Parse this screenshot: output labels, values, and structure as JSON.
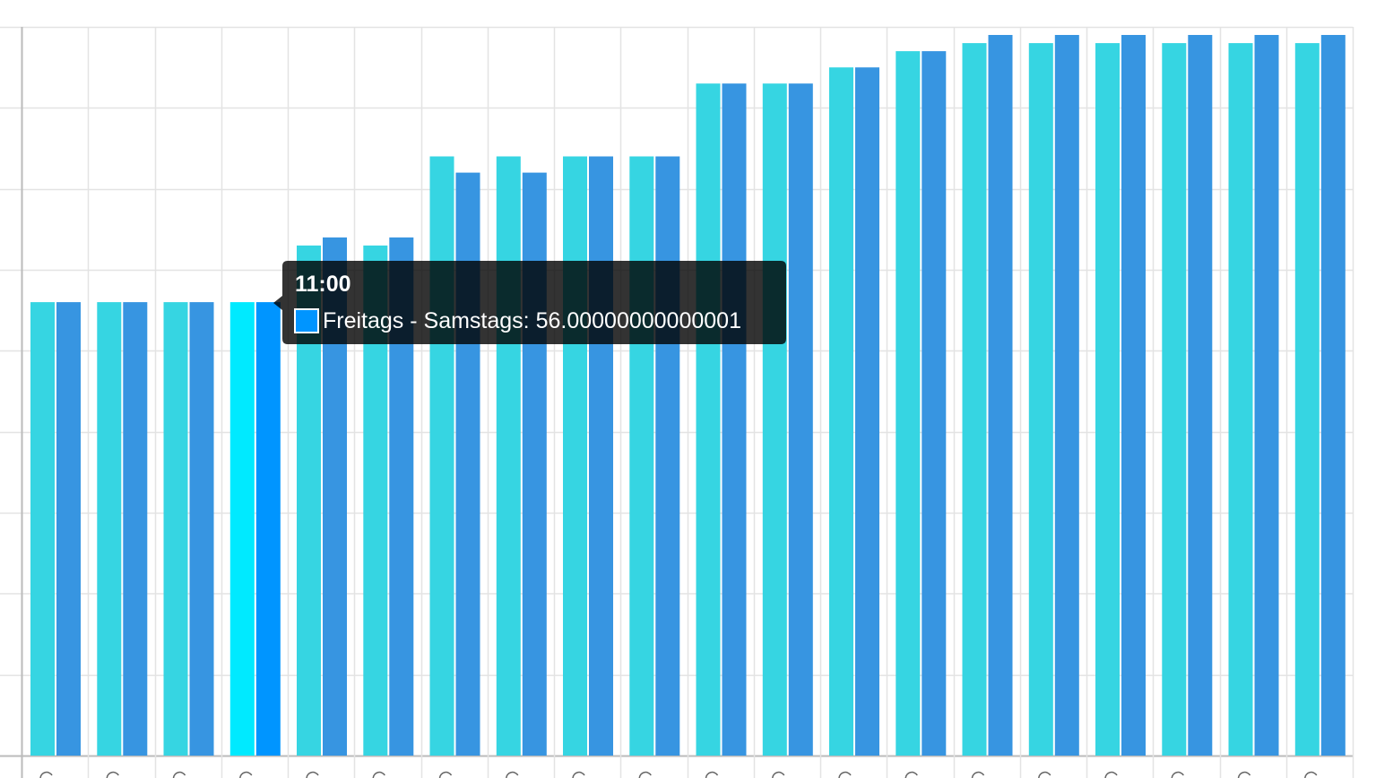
{
  "chart_data": {
    "type": "bar",
    "categories": [
      "",
      "",
      "",
      "11:00",
      "",
      "",
      "",
      "",
      "",
      "",
      "",
      "",
      "",
      "",
      "",
      "",
      "",
      "",
      "",
      ""
    ],
    "ylim": [
      0,
      90
    ],
    "grid": true,
    "series": [
      {
        "values": [
          56,
          56,
          56,
          56,
          63,
          63,
          74,
          74,
          74,
          74,
          83,
          83,
          85,
          87,
          88,
          88,
          88,
          88,
          88,
          88
        ],
        "color": "#36d5e2",
        "hover_color": "#00eaff"
      },
      {
        "name": "Freitags - Samstags",
        "values": [
          56,
          56,
          56,
          56,
          64,
          64,
          72,
          72,
          74,
          74,
          83,
          83,
          85,
          87,
          89,
          89,
          89,
          89,
          89,
          89
        ],
        "color": "#3795e1",
        "hover_color": "#0095ff"
      }
    ],
    "highlighted_index": 3
  },
  "tooltip": {
    "title": "11:00",
    "label": "Freitags - Samstags: 56.00000000000001",
    "swatch_color": "#0095ff"
  }
}
